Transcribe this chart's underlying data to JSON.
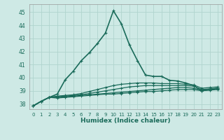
{
  "xlabel": "Humidex (Indice chaleur)",
  "xlim": [
    -0.5,
    23.5
  ],
  "ylim": [
    37.6,
    45.6
  ],
  "xticks": [
    0,
    1,
    2,
    3,
    4,
    5,
    6,
    7,
    8,
    9,
    10,
    11,
    12,
    13,
    14,
    15,
    16,
    17,
    18,
    19,
    20,
    21,
    22,
    23
  ],
  "yticks": [
    38,
    39,
    40,
    41,
    42,
    43,
    44,
    45
  ],
  "bg_color": "#cee9e5",
  "line_color": "#1a6b5a",
  "grid_color": "#b0d4ce",
  "lines": [
    [
      37.85,
      38.2,
      38.5,
      38.75,
      39.85,
      40.5,
      41.3,
      41.9,
      42.6,
      43.4,
      45.1,
      44.1,
      42.5,
      41.3,
      40.2,
      40.1,
      40.1,
      39.8,
      39.75,
      39.6,
      39.4,
      39.0,
      39.1,
      39.2
    ],
    [
      37.85,
      38.2,
      38.5,
      38.45,
      38.5,
      38.55,
      38.6,
      38.65,
      38.7,
      38.75,
      38.75,
      38.8,
      38.85,
      38.9,
      38.95,
      38.95,
      39.0,
      39.05,
      39.1,
      39.1,
      39.1,
      39.0,
      39.05,
      39.1
    ],
    [
      37.85,
      38.2,
      38.5,
      38.5,
      38.55,
      38.6,
      38.65,
      38.7,
      38.75,
      38.8,
      38.85,
      38.9,
      38.95,
      39.0,
      39.05,
      39.1,
      39.15,
      39.2,
      39.25,
      39.25,
      39.2,
      39.05,
      39.1,
      39.15
    ],
    [
      37.85,
      38.2,
      38.5,
      38.55,
      38.6,
      38.65,
      38.7,
      38.8,
      38.9,
      39.0,
      39.1,
      39.2,
      39.3,
      39.35,
      39.4,
      39.4,
      39.4,
      39.4,
      39.4,
      39.4,
      39.35,
      39.1,
      39.15,
      39.2
    ],
    [
      37.85,
      38.2,
      38.5,
      38.6,
      38.65,
      38.7,
      38.8,
      38.95,
      39.1,
      39.25,
      39.4,
      39.5,
      39.55,
      39.6,
      39.6,
      39.6,
      39.55,
      39.55,
      39.55,
      39.5,
      39.45,
      39.2,
      39.25,
      39.3
    ]
  ]
}
